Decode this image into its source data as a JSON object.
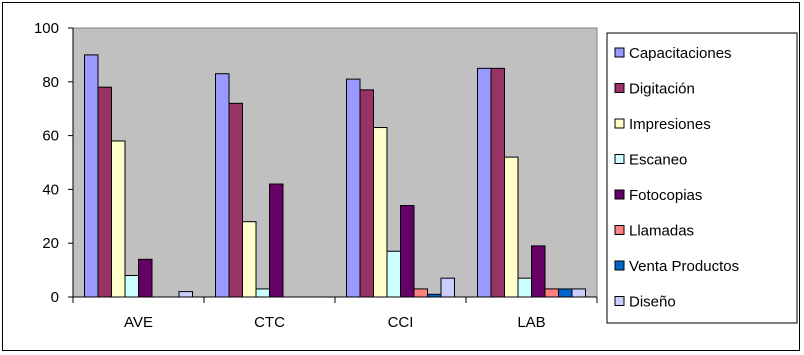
{
  "chart_data": {
    "type": "bar",
    "categories": [
      "AVE",
      "CTC",
      "CCI",
      "LAB"
    ],
    "ylim": [
      0,
      100
    ],
    "yticks": [
      0,
      20,
      40,
      60,
      80,
      100
    ],
    "grid": false,
    "legend_position": "right",
    "plot_background": "#c0c0c0",
    "series": [
      {
        "name": "Capacitaciones",
        "color": "#9999ff",
        "values": [
          90,
          83,
          81,
          85
        ]
      },
      {
        "name": "Digitación",
        "color": "#993366",
        "values": [
          78,
          72,
          77,
          85
        ]
      },
      {
        "name": "Impresiones",
        "color": "#ffffcc",
        "values": [
          58,
          28,
          63,
          52
        ]
      },
      {
        "name": "Escaneo",
        "color": "#ccffff",
        "values": [
          8,
          3,
          17,
          7
        ]
      },
      {
        "name": "Fotocopias",
        "color": "#660066",
        "values": [
          14,
          42,
          34,
          19
        ]
      },
      {
        "name": "Llamadas",
        "color": "#ff8080",
        "values": [
          0,
          0,
          3,
          3
        ]
      },
      {
        "name": "Venta Productos",
        "color": "#0066cc",
        "values": [
          0,
          0,
          1,
          3
        ]
      },
      {
        "name": "Diseño",
        "color": "#ccccff",
        "values": [
          2,
          0,
          7,
          3
        ]
      }
    ]
  }
}
